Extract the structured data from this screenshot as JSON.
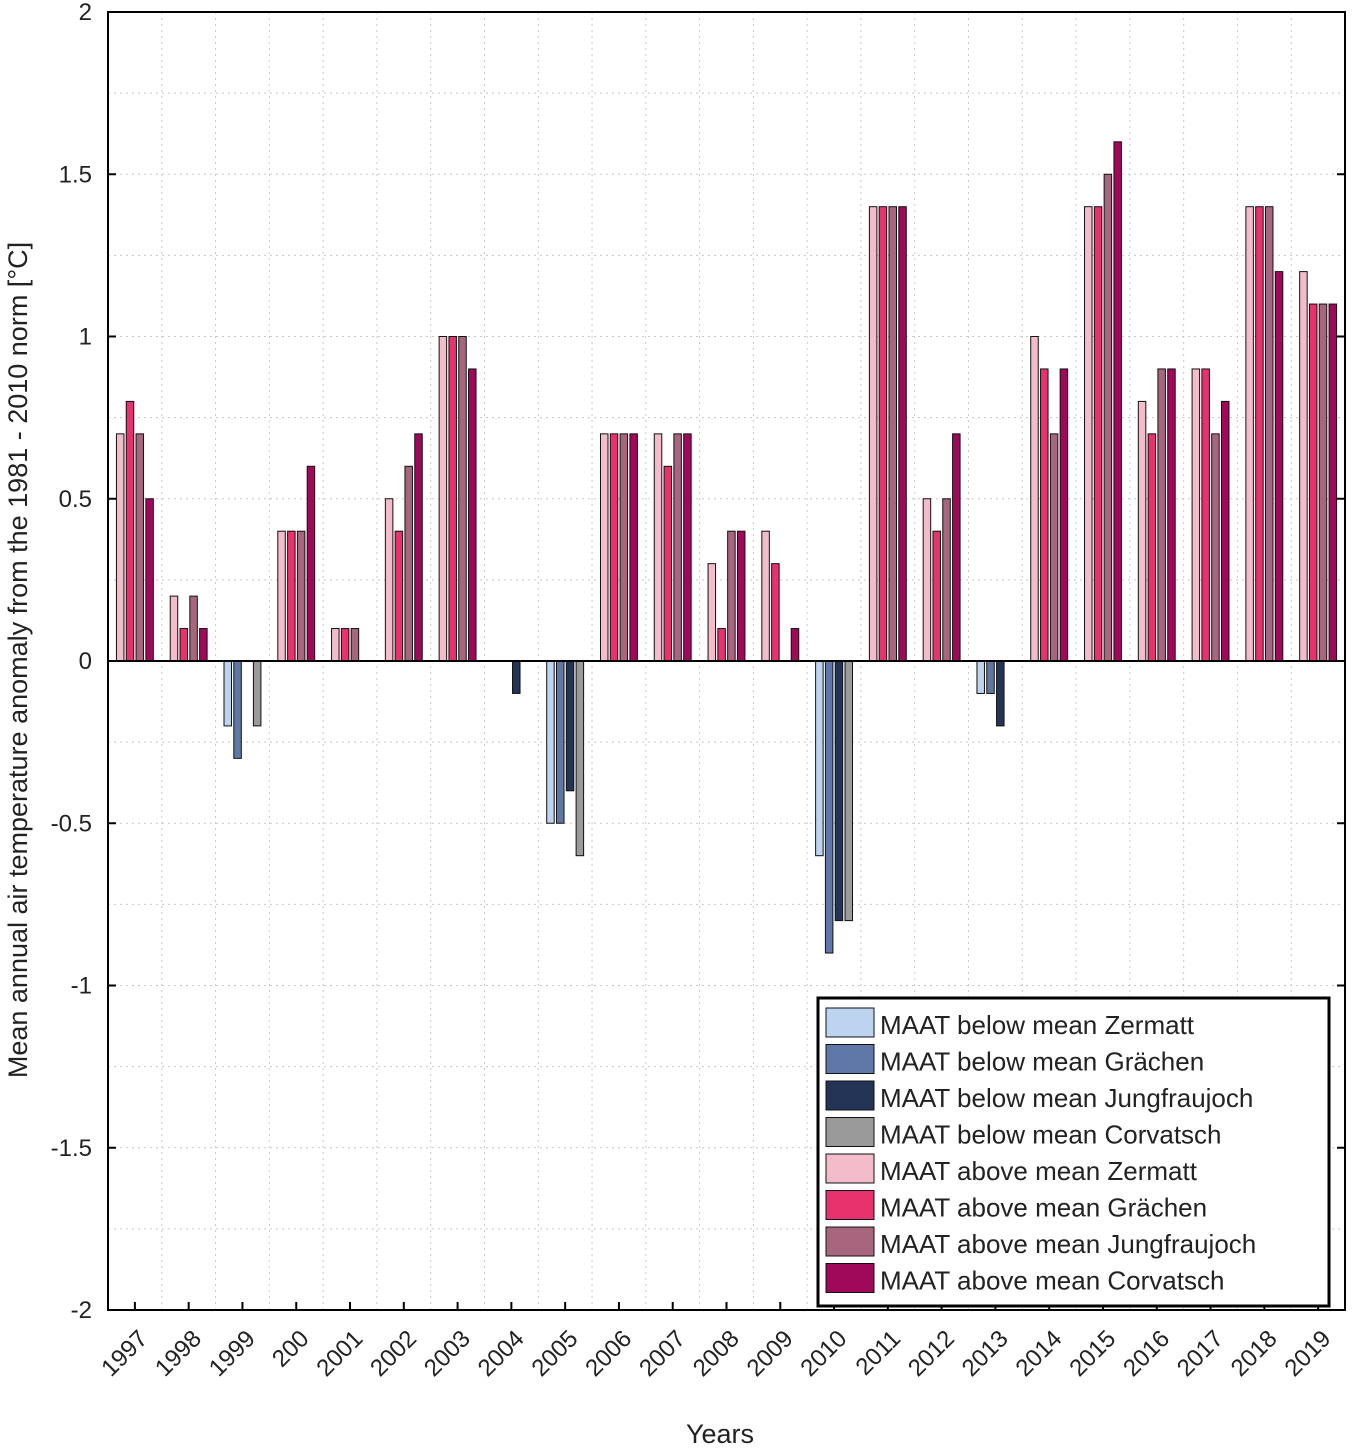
{
  "chart_data": {
    "type": "bar",
    "title": "",
    "xlabel": "Years",
    "ylabel": "Mean annual air temperature anomaly from the 1981 - 2010 norm [°C]",
    "ylim": [
      -2,
      2
    ],
    "yticks": [
      "2",
      "1.5",
      "1",
      "0.5",
      "0",
      "-0.5",
      "-1",
      "-1.5",
      "-2"
    ],
    "ytick_values": [
      2,
      1.5,
      1,
      0.5,
      0,
      -0.5,
      -1,
      -1.5,
      -2
    ],
    "grid": true,
    "legend_position": "bottom-right",
    "categories": [
      "1997",
      "1998",
      "1999",
      "200",
      "2001",
      "2002",
      "2003",
      "2004",
      "2005",
      "2006",
      "2007",
      "2008",
      "2009",
      "2010",
      "2011",
      "2012",
      "2013",
      "2014",
      "2015",
      "2016",
      "2017",
      "2018",
      "2019"
    ],
    "stations": [
      "Zermatt",
      "Grächen",
      "Jungfraujoch",
      "Corvatsch"
    ],
    "series": [
      {
        "name": "Zermatt",
        "values": [
          0.7,
          0.2,
          -0.2,
          0.4,
          0.1,
          0.5,
          1.0,
          0,
          -0.5,
          0.7,
          0.7,
          0.3,
          0.4,
          -0.6,
          1.4,
          0.5,
          -0.1,
          1.0,
          1.4,
          0.8,
          0.9,
          1.4,
          1.2
        ]
      },
      {
        "name": "Grächen",
        "values": [
          0.8,
          0.1,
          -0.3,
          0.4,
          0.1,
          0.4,
          1.0,
          0,
          -0.5,
          0.7,
          0.6,
          0.1,
          0.3,
          -0.9,
          1.4,
          0.4,
          -0.1,
          0.9,
          1.4,
          0.7,
          0.9,
          1.4,
          1.1
        ]
      },
      {
        "name": "Jungfraujoch",
        "values": [
          0.7,
          0.2,
          0,
          0.4,
          0.1,
          0.6,
          1.0,
          -0.1,
          -0.4,
          0.7,
          0.7,
          0.4,
          0,
          -0.8,
          1.4,
          0.5,
          -0.2,
          0.7,
          1.5,
          0.9,
          0.7,
          1.4,
          1.1
        ]
      },
      {
        "name": "Corvatsch",
        "values": [
          0.5,
          0.1,
          -0.2,
          0.6,
          0,
          0.7,
          0.9,
          0,
          -0.6,
          0.7,
          0.7,
          0.4,
          0.1,
          -0.8,
          1.4,
          0.7,
          0,
          0.9,
          1.6,
          0.9,
          0.8,
          1.2,
          1.1
        ]
      }
    ],
    "colors": {
      "below": [
        "#bcd4f0",
        "#5f78a8",
        "#233456",
        "#9a9a9a"
      ],
      "above": [
        "#f4bccb",
        "#e8326e",
        "#a8667e",
        "#a0095a"
      ]
    },
    "legend": [
      {
        "label": "MAAT below mean Zermatt",
        "color": "#bcd4f0"
      },
      {
        "label": "MAAT below mean Grächen",
        "color": "#5f78a8"
      },
      {
        "label": "MAAT below mean Jungfraujoch",
        "color": "#233456"
      },
      {
        "label": "MAAT below mean Corvatsch",
        "color": "#9a9a9a"
      },
      {
        "label": "MAAT above mean Zermatt",
        "color": "#f4bccb"
      },
      {
        "label": "MAAT above mean Grächen",
        "color": "#e8326e"
      },
      {
        "label": "MAAT above mean Jungfraujoch",
        "color": "#a8667e"
      },
      {
        "label": "MAAT above mean Corvatsch",
        "color": "#a0095a"
      }
    ]
  }
}
